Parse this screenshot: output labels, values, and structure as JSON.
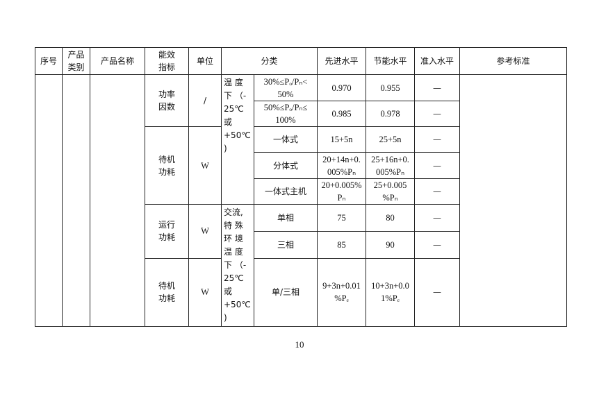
{
  "header": [
    "序号",
    "产品\n类别",
    "产品名称",
    "能效\n指标",
    "单位",
    "分类",
    "先进水平",
    "节能水平",
    "准入水平",
    "参考标准"
  ],
  "groups": [
    {
      "indicator": "功率\n因数",
      "unit": "/"
    },
    {
      "indicator": "待机\n功耗",
      "unit": "W"
    },
    {
      "indicator": "运行\n功耗",
      "unit": "W"
    },
    {
      "indicator": "待机\n功耗",
      "unit": "W"
    }
  ],
  "conditions": [
    "温  度\n下 （-\n25℃\n或\n+50℃\n)",
    "交流,\n特  殊\n环  境\n温  度\n下 （-\n25℃\n或\n+50℃\n)"
  ],
  "rows": [
    {
      "category": "30%≤Pₒ/Pₙ<\n50%",
      "advanced": "0.970",
      "saving": "0.955",
      "entry": "—"
    },
    {
      "category": "50%≤Pₒ/Pₙ≤\n100%",
      "advanced": "0.985",
      "saving": "0.978",
      "entry": "—"
    },
    {
      "category": "一体式",
      "advanced": "15+5n",
      "saving": "25+5n",
      "entry": "—"
    },
    {
      "category": "分体式",
      "advanced": "20+14n+0.\n005%Pₙ",
      "saving": "25+16n+0.\n005%Pₙ",
      "entry": "—"
    },
    {
      "category": "一体式主机",
      "advanced": "20+0.005%\nPₙ",
      "saving": "25+0.005\n%Pₙ",
      "entry": "—"
    },
    {
      "category": "单相",
      "advanced": "75",
      "saving": "80",
      "entry": "—"
    },
    {
      "category": "三相",
      "advanced": "85",
      "saving": "90",
      "entry": "—"
    },
    {
      "category": "单/三相",
      "advanced": "9+3n+0.01\n%Pₑ",
      "saving": "10+3n+0.0\n1%Pₑ",
      "entry": "—"
    }
  ],
  "page_number": "10"
}
